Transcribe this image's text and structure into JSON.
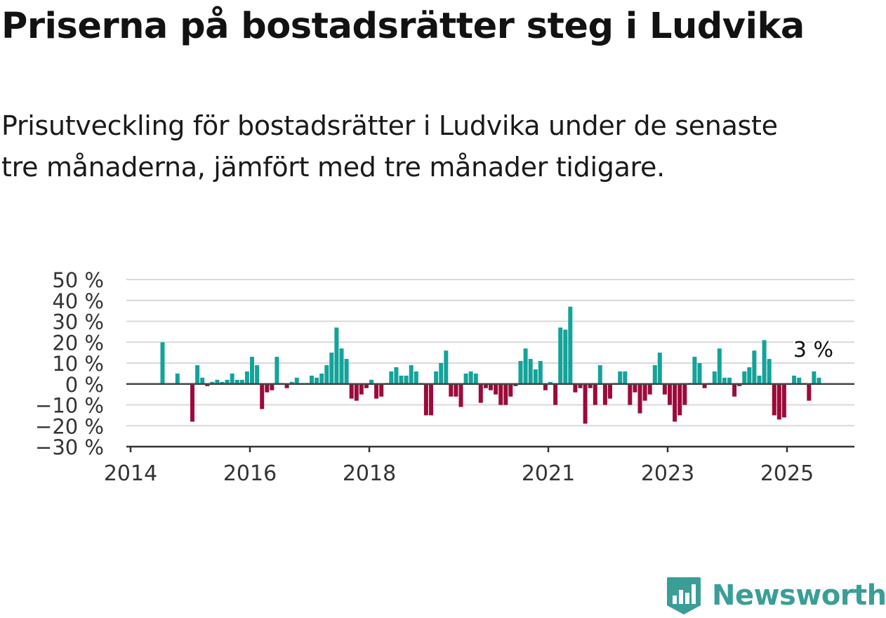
{
  "title": "Priserna på bostadsrätter steg i Ludvika",
  "subtitle": "Prisutveckling för bostadsrätter i Ludvika under de senaste tre månaderna, jämfört med tre månader tidigare.",
  "brand": {
    "name": "Newsworthy",
    "icon": "newsworthy-logo-icon"
  },
  "colors": {
    "positive": "#13a39a",
    "negative": "#9c0a3a",
    "grid": "#d9d9d9",
    "axis": "#333333"
  },
  "chart_data": {
    "type": "bar",
    "title": "",
    "xlabel": "",
    "ylabel": "",
    "ylim": [
      -30,
      50
    ],
    "grid": true,
    "y_ticks": [
      "50 %",
      "40 %",
      "30 %",
      "20 %",
      "10 %",
      "0 %",
      "−10 %",
      "−20 %",
      "−30 %"
    ],
    "y_tick_values": [
      50,
      40,
      30,
      20,
      10,
      0,
      -10,
      -20,
      -30
    ],
    "x_ticks": [
      "2014",
      "2016",
      "2018",
      "2021",
      "2023",
      "2025"
    ],
    "x_tick_values": [
      "2014-01",
      "2016-01",
      "2018-01",
      "2021-01",
      "2023-01",
      "2025-01"
    ],
    "annotation": {
      "text": "3 %",
      "x": "2025-06",
      "value": 3
    },
    "series": [
      {
        "values": [
          {
            "x": "2014-07",
            "y": 20
          },
          {
            "x": "2014-10",
            "y": 5
          },
          {
            "x": "2015-01",
            "y": -18
          },
          {
            "x": "2015-02",
            "y": 9
          },
          {
            "x": "2015-03",
            "y": 3
          },
          {
            "x": "2015-04",
            "y": -1
          },
          {
            "x": "2015-05",
            "y": 1
          },
          {
            "x": "2015-06",
            "y": 2
          },
          {
            "x": "2015-07",
            "y": 1
          },
          {
            "x": "2015-08",
            "y": 2
          },
          {
            "x": "2015-09",
            "y": 5
          },
          {
            "x": "2015-10",
            "y": 2
          },
          {
            "x": "2015-11",
            "y": 2
          },
          {
            "x": "2015-12",
            "y": 6
          },
          {
            "x": "2016-01",
            "y": 13
          },
          {
            "x": "2016-02",
            "y": 9
          },
          {
            "x": "2016-03",
            "y": -12
          },
          {
            "x": "2016-04",
            "y": -4
          },
          {
            "x": "2016-05",
            "y": -3
          },
          {
            "x": "2016-06",
            "y": 13
          },
          {
            "x": "2016-07",
            "y": 0.5
          },
          {
            "x": "2016-08",
            "y": -2
          },
          {
            "x": "2016-09",
            "y": 1
          },
          {
            "x": "2016-10",
            "y": 3
          },
          {
            "x": "2016-11",
            "y": 0.5
          },
          {
            "x": "2016-12",
            "y": 0.5
          },
          {
            "x": "2017-01",
            "y": 4
          },
          {
            "x": "2017-02",
            "y": 3
          },
          {
            "x": "2017-03",
            "y": 5
          },
          {
            "x": "2017-04",
            "y": 9
          },
          {
            "x": "2017-05",
            "y": 15
          },
          {
            "x": "2017-06",
            "y": 27
          },
          {
            "x": "2017-07",
            "y": 17
          },
          {
            "x": "2017-08",
            "y": 12
          },
          {
            "x": "2017-09",
            "y": -7
          },
          {
            "x": "2017-10",
            "y": -8
          },
          {
            "x": "2017-11",
            "y": -5
          },
          {
            "x": "2017-12",
            "y": -2
          },
          {
            "x": "2018-01",
            "y": 2
          },
          {
            "x": "2018-02",
            "y": -7
          },
          {
            "x": "2018-03",
            "y": -6
          },
          {
            "x": "2018-04",
            "y": 0.5
          },
          {
            "x": "2018-05",
            "y": 6
          },
          {
            "x": "2018-06",
            "y": 8
          },
          {
            "x": "2018-07",
            "y": 4
          },
          {
            "x": "2018-08",
            "y": 4
          },
          {
            "x": "2018-09",
            "y": 9
          },
          {
            "x": "2018-10",
            "y": 6
          },
          {
            "x": "2018-11",
            "y": 0.5
          },
          {
            "x": "2018-12",
            "y": -15
          },
          {
            "x": "2019-01",
            "y": -15
          },
          {
            "x": "2019-02",
            "y": 6
          },
          {
            "x": "2019-03",
            "y": 10
          },
          {
            "x": "2019-04",
            "y": 16
          },
          {
            "x": "2019-05",
            "y": -6
          },
          {
            "x": "2019-06",
            "y": -6
          },
          {
            "x": "2019-07",
            "y": -11
          },
          {
            "x": "2019-08",
            "y": 5
          },
          {
            "x": "2019-09",
            "y": 6
          },
          {
            "x": "2019-10",
            "y": 5
          },
          {
            "x": "2019-11",
            "y": -9
          },
          {
            "x": "2019-12",
            "y": -2
          },
          {
            "x": "2020-01",
            "y": -3
          },
          {
            "x": "2020-02",
            "y": -5
          },
          {
            "x": "2020-03",
            "y": -10
          },
          {
            "x": "2020-04",
            "y": -10
          },
          {
            "x": "2020-05",
            "y": -6
          },
          {
            "x": "2020-06",
            "y": -1
          },
          {
            "x": "2020-07",
            "y": 11
          },
          {
            "x": "2020-08",
            "y": 17
          },
          {
            "x": "2020-09",
            "y": 12
          },
          {
            "x": "2020-10",
            "y": 7
          },
          {
            "x": "2020-11",
            "y": 11
          },
          {
            "x": "2020-12",
            "y": -3
          },
          {
            "x": "2021-01",
            "y": 1
          },
          {
            "x": "2021-02",
            "y": -10
          },
          {
            "x": "2021-03",
            "y": 27
          },
          {
            "x": "2021-04",
            "y": 26
          },
          {
            "x": "2021-05",
            "y": 37
          },
          {
            "x": "2021-06",
            "y": -4
          },
          {
            "x": "2021-07",
            "y": -2
          },
          {
            "x": "2021-08",
            "y": -19
          },
          {
            "x": "2021-09",
            "y": -2
          },
          {
            "x": "2021-10",
            "y": -10
          },
          {
            "x": "2021-11",
            "y": 9
          },
          {
            "x": "2021-12",
            "y": -10
          },
          {
            "x": "2022-01",
            "y": -7
          },
          {
            "x": "2022-02",
            "y": 0.5
          },
          {
            "x": "2022-03",
            "y": 6
          },
          {
            "x": "2022-04",
            "y": 6
          },
          {
            "x": "2022-05",
            "y": -10
          },
          {
            "x": "2022-06",
            "y": -4
          },
          {
            "x": "2022-07",
            "y": -14
          },
          {
            "x": "2022-08",
            "y": -8
          },
          {
            "x": "2022-09",
            "y": -5
          },
          {
            "x": "2022-10",
            "y": 9
          },
          {
            "x": "2022-11",
            "y": 15
          },
          {
            "x": "2022-12",
            "y": -5
          },
          {
            "x": "2023-01",
            "y": -10
          },
          {
            "x": "2023-02",
            "y": -18
          },
          {
            "x": "2023-03",
            "y": -15
          },
          {
            "x": "2023-04",
            "y": -10
          },
          {
            "x": "2023-05",
            "y": 0.5
          },
          {
            "x": "2023-06",
            "y": 13
          },
          {
            "x": "2023-07",
            "y": 10
          },
          {
            "x": "2023-08",
            "y": -2
          },
          {
            "x": "2023-09",
            "y": 0.5
          },
          {
            "x": "2023-10",
            "y": 6
          },
          {
            "x": "2023-11",
            "y": 17
          },
          {
            "x": "2023-12",
            "y": 3
          },
          {
            "x": "2024-01",
            "y": 3
          },
          {
            "x": "2024-02",
            "y": -6
          },
          {
            "x": "2024-03",
            "y": -1
          },
          {
            "x": "2024-04",
            "y": 6
          },
          {
            "x": "2024-05",
            "y": 8
          },
          {
            "x": "2024-06",
            "y": 16
          },
          {
            "x": "2024-07",
            "y": 4
          },
          {
            "x": "2024-08",
            "y": 21
          },
          {
            "x": "2024-09",
            "y": 12
          },
          {
            "x": "2024-10",
            "y": -15
          },
          {
            "x": "2024-11",
            "y": -17
          },
          {
            "x": "2024-12",
            "y": -16
          },
          {
            "x": "2025-02",
            "y": 4
          },
          {
            "x": "2025-03",
            "y": 3
          },
          {
            "x": "2025-04",
            "y": 0.5
          },
          {
            "x": "2025-05",
            "y": -8
          },
          {
            "x": "2025-06",
            "y": 6
          },
          {
            "x": "2025-07",
            "y": 3
          }
        ]
      }
    ]
  }
}
